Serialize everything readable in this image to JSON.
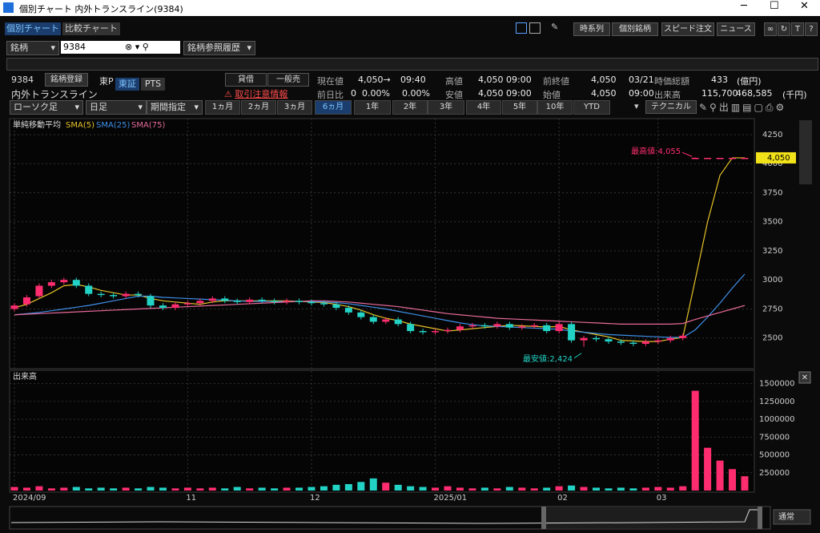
{
  "window": {
    "title": "個別チャート 内外トランスライン(9384)"
  },
  "tabs": [
    "個別チャート",
    "比較チャート"
  ],
  "toolbar": [
    "時系列",
    "個別銘柄",
    "スピード注文",
    "ニュース"
  ],
  "search": {
    "field": "銘柄",
    "code": "9384",
    "history": "銘柄参照履歴"
  },
  "stock": {
    "code": "9384",
    "register": "銘柄登録",
    "market": "東P",
    "exchanges": [
      "東証",
      "PTS"
    ],
    "name": "内外トランスライン",
    "buttons": [
      "貸借",
      "一般売"
    ],
    "warning": "取引注意情報"
  },
  "quotes": {
    "row1": [
      "現在値",
      "4,050→",
      "09:40",
      "高値",
      "4,050",
      "09:00",
      "前終値",
      "4,050",
      "03/21",
      "時価総額",
      "433",
      "(億円)"
    ],
    "row2": [
      "前日比",
      "0",
      "0.00%",
      "0.00%",
      "安値",
      "4,050",
      "09:00",
      "始値",
      "4,050",
      "09:00",
      "出来高",
      "115,700",
      "468,585",
      "(千円)"
    ]
  },
  "controls": {
    "chart_type": "ローソク足",
    "period": "日足",
    "range": "期間指定",
    "ranges": [
      "1ヵ月",
      "2ヵ月",
      "3ヵ月",
      "6ヵ月",
      "1年",
      "2年",
      "3年",
      "4年",
      "5年",
      "10年",
      "YTD"
    ],
    "technical": "テクニカル",
    "mode": "通常"
  },
  "chart_data": [
    {
      "type": "candlestick",
      "title": "単純移動平均",
      "categories": [
        "2024/09",
        null,
        null,
        null,
        null,
        null,
        null,
        null,
        null,
        null,
        null,
        null,
        null,
        null,
        "11",
        null,
        null,
        null,
        null,
        null,
        null,
        null,
        null,
        null,
        "12",
        null,
        null,
        null,
        null,
        null,
        null,
        null,
        null,
        null,
        "2025/01",
        null,
        null,
        null,
        null,
        null,
        null,
        null,
        null,
        null,
        "02",
        null,
        null,
        null,
        null,
        null,
        null,
        null,
        "03",
        null,
        null,
        null,
        null,
        null,
        null,
        null
      ],
      "open": [
        2750,
        2790,
        2860,
        2950,
        2980,
        3000,
        2950,
        2880,
        2870,
        2860,
        2880,
        2860,
        2780,
        2760,
        2790,
        2800,
        2820,
        2840,
        2820,
        2810,
        2830,
        2820,
        2810,
        2820,
        2810,
        2800,
        2790,
        2760,
        2720,
        2680,
        2640,
        2660,
        2620,
        2560,
        2550,
        2560,
        2570,
        2600,
        2610,
        2600,
        2620,
        2590,
        2600,
        2610,
        2560,
        2620,
        2480,
        2500,
        2490,
        2470,
        2460,
        2450,
        2470,
        2480,
        2500,
        4050,
        4050,
        4050,
        4050,
        4050
      ],
      "high": [
        2800,
        2870,
        2970,
        3000,
        3020,
        3020,
        2970,
        2900,
        2890,
        2900,
        2900,
        2880,
        2800,
        2810,
        2820,
        2840,
        2860,
        2860,
        2840,
        2850,
        2850,
        2840,
        2840,
        2840,
        2830,
        2820,
        2810,
        2780,
        2740,
        2700,
        2680,
        2680,
        2640,
        2580,
        2580,
        2590,
        2620,
        2630,
        2630,
        2640,
        2640,
        2620,
        2630,
        2630,
        2640,
        2640,
        2520,
        2520,
        2510,
        2490,
        2480,
        2490,
        2500,
        2520,
        2540,
        4055,
        4050,
        4050,
        4050,
        4050
      ],
      "low": [
        2730,
        2770,
        2840,
        2930,
        2960,
        2930,
        2860,
        2850,
        2840,
        2840,
        2850,
        2760,
        2740,
        2740,
        2770,
        2780,
        2800,
        2800,
        2790,
        2790,
        2800,
        2790,
        2790,
        2790,
        2780,
        2770,
        2740,
        2700,
        2660,
        2620,
        2620,
        2600,
        2540,
        2530,
        2530,
        2540,
        2550,
        2580,
        2580,
        2580,
        2570,
        2570,
        2580,
        2540,
        2540,
        2460,
        2424,
        2470,
        2450,
        2440,
        2430,
        2430,
        2450,
        2460,
        2480,
        4050,
        4050,
        4050,
        4050,
        4050
      ],
      "close": [
        2780,
        2850,
        2950,
        2980,
        3000,
        2950,
        2880,
        2870,
        2860,
        2880,
        2870,
        2780,
        2760,
        2790,
        2800,
        2820,
        2840,
        2820,
        2810,
        2830,
        2820,
        2810,
        2820,
        2810,
        2800,
        2790,
        2760,
        2720,
        2680,
        2640,
        2660,
        2620,
        2560,
        2550,
        2560,
        2570,
        2600,
        2610,
        2600,
        2620,
        2590,
        2600,
        2610,
        2560,
        2620,
        2480,
        2500,
        2490,
        2470,
        2460,
        2450,
        2470,
        2480,
        2500,
        2520,
        4050,
        4050,
        4050,
        4050,
        4050
      ],
      "up_color": "#ff2d6f",
      "down_color": "#22d3c5",
      "series": [
        {
          "name": "SMA(5)",
          "color": "#e6c229",
          "values": [
            2760,
            2790,
            2840,
            2890,
            2950,
            2960,
            2940,
            2910,
            2890,
            2870,
            2870,
            2840,
            2820,
            2810,
            2800,
            2790,
            2810,
            2820,
            2820,
            2820,
            2820,
            2820,
            2820,
            2815,
            2810,
            2805,
            2790,
            2770,
            2740,
            2700,
            2670,
            2650,
            2620,
            2600,
            2580,
            2560,
            2570,
            2580,
            2590,
            2600,
            2610,
            2605,
            2600,
            2595,
            2600,
            2570,
            2550,
            2530,
            2510,
            2480,
            2475,
            2470,
            2470,
            2490,
            2505,
            3000,
            3500,
            3900,
            4050,
            4050
          ]
        },
        {
          "name": "SMA(25)",
          "color": "#3f8fe8",
          "values": [
            2700,
            2710,
            2720,
            2735,
            2750,
            2765,
            2780,
            2800,
            2820,
            2840,
            2860,
            2860,
            2850,
            2845,
            2840,
            2835,
            2830,
            2825,
            2820,
            2815,
            2815,
            2815,
            2815,
            2815,
            2815,
            2810,
            2805,
            2795,
            2780,
            2765,
            2750,
            2730,
            2710,
            2690,
            2670,
            2650,
            2630,
            2615,
            2605,
            2600,
            2595,
            2590,
            2585,
            2580,
            2575,
            2560,
            2550,
            2540,
            2530,
            2525,
            2520,
            2515,
            2510,
            2505,
            2505,
            2570,
            2680,
            2800,
            2930,
            3050
          ]
        },
        {
          "name": "SMA(75)",
          "color": "#e86a9a",
          "values": [
            2700,
            2705,
            2710,
            2715,
            2720,
            2725,
            2730,
            2735,
            2740,
            2745,
            2750,
            2755,
            2760,
            2765,
            2770,
            2775,
            2780,
            2785,
            2790,
            2795,
            2800,
            2805,
            2810,
            2815,
            2820,
            2820,
            2815,
            2810,
            2800,
            2790,
            2780,
            2770,
            2755,
            2740,
            2725,
            2710,
            2700,
            2690,
            2680,
            2670,
            2665,
            2660,
            2655,
            2650,
            2645,
            2640,
            2635,
            2630,
            2625,
            2620,
            2620,
            2620,
            2620,
            2620,
            2625,
            2660,
            2690,
            2720,
            2750,
            2780
          ]
        }
      ],
      "ylim": [
        2250,
        4360
      ],
      "yticks": [
        2500,
        2750,
        3000,
        3250,
        3500,
        3750,
        4000,
        4250
      ],
      "grid": true,
      "annotations": {
        "high": "最高値:4,055",
        "low": "最安値:2,424",
        "last": "4,050"
      }
    },
    {
      "type": "bar",
      "title": "出来高",
      "values": [
        50000,
        40000,
        60000,
        30000,
        40000,
        50000,
        30000,
        40000,
        30000,
        40000,
        30000,
        50000,
        40000,
        30000,
        40000,
        30000,
        40000,
        30000,
        50000,
        30000,
        40000,
        30000,
        40000,
        40000,
        50000,
        60000,
        80000,
        90000,
        120000,
        170000,
        110000,
        80000,
        60000,
        50000,
        40000,
        60000,
        40000,
        30000,
        40000,
        30000,
        50000,
        40000,
        30000,
        40000,
        60000,
        70000,
        50000,
        40000,
        30000,
        40000,
        30000,
        40000,
        50000,
        40000,
        60000,
        1400000,
        600000,
        420000,
        300000,
        200000
      ],
      "ylim": [
        0,
        1620000
      ],
      "yticks": [
        250000,
        500000,
        750000,
        1000000,
        1250000,
        1500000
      ],
      "grid": true
    }
  ]
}
